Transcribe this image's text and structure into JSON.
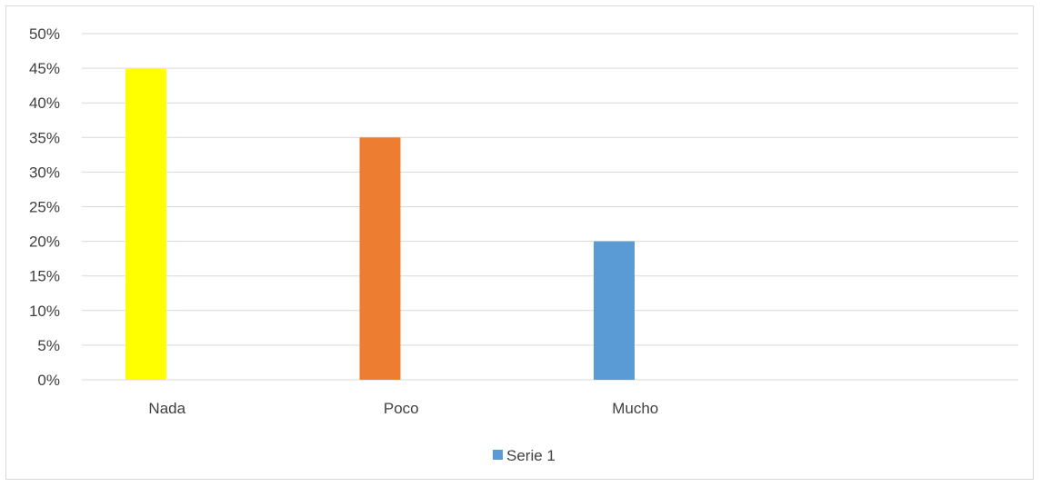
{
  "chart_data": {
    "type": "bar",
    "title": "",
    "xlabel": "",
    "ylabel": "",
    "categories": [
      "Nada",
      "Poco",
      "Mucho",
      ""
    ],
    "series": [
      {
        "name": "Serie 1",
        "values": [
          45,
          35,
          20,
          null
        ],
        "colors": [
          "#ffff00",
          "#ed7d31",
          "#5b9bd5",
          null
        ]
      }
    ],
    "ylim": [
      0,
      50
    ],
    "ytick_step": 5,
    "ytick_format": "percent",
    "grid": true,
    "legend": {
      "position": "bottom",
      "entries": [
        {
          "label": "Serie 1",
          "color": "#5b9bd5"
        }
      ]
    }
  }
}
